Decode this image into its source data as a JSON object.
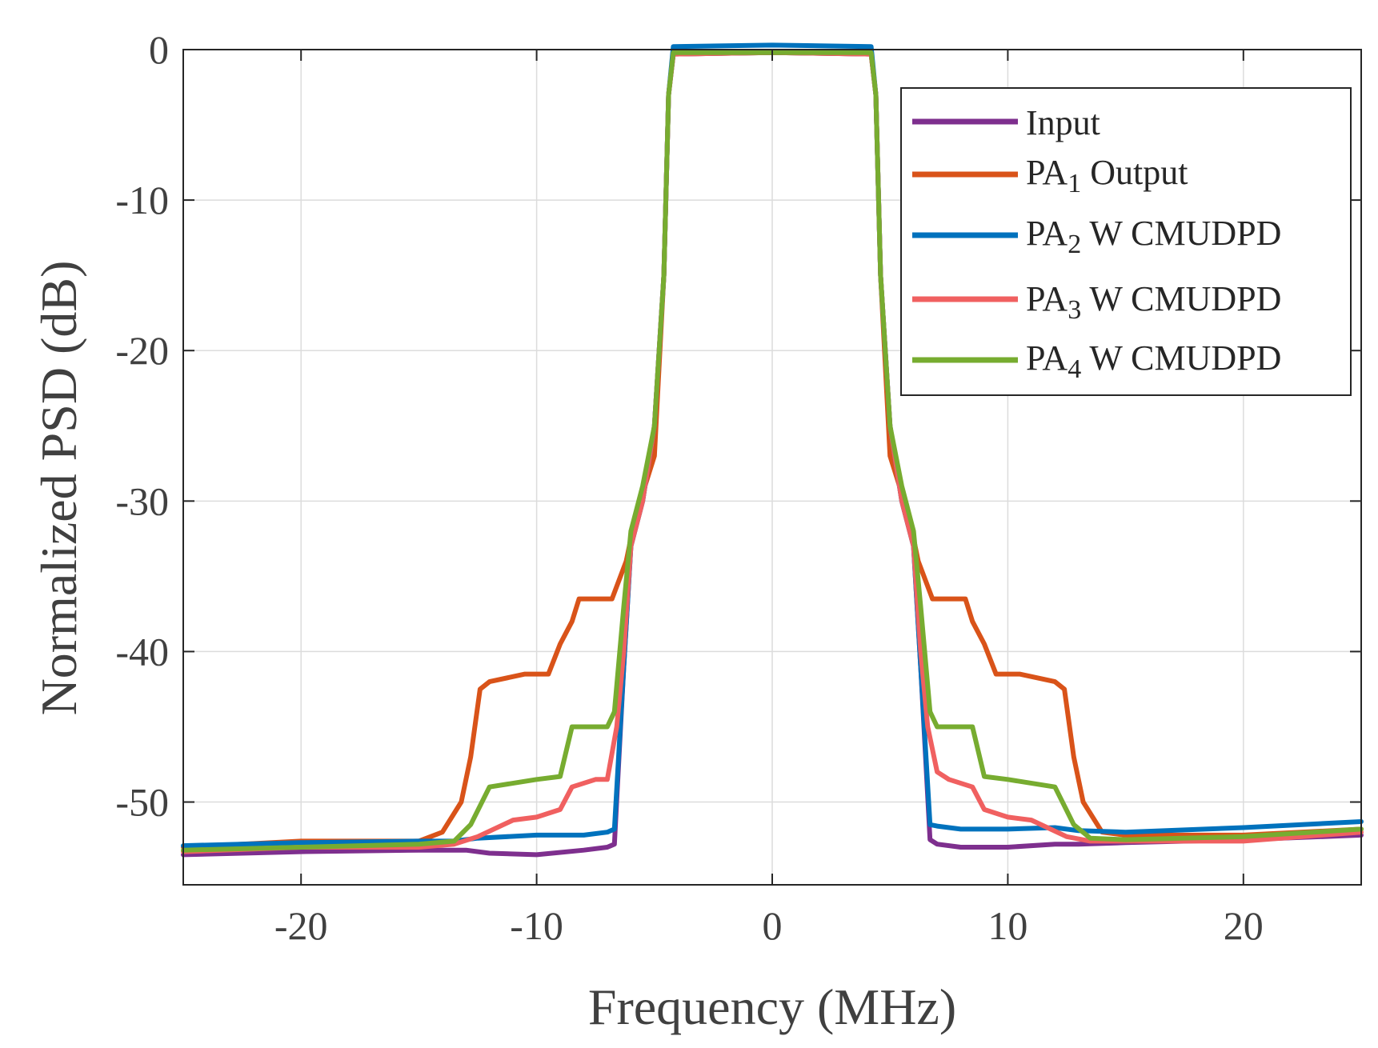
{
  "chart_data": {
    "type": "line",
    "title": "",
    "xlabel": "Frequency (MHz)",
    "ylabel": "Normalized PSD (dB)",
    "xlim": [
      -25,
      25
    ],
    "ylim": [
      -55.5,
      0
    ],
    "xticks": [
      -20,
      -10,
      0,
      10,
      20
    ],
    "xtick_labels": [
      "-20",
      "-10",
      "0",
      "10",
      "20"
    ],
    "yticks": [
      0,
      -10,
      -20,
      -30,
      -40,
      -50
    ],
    "ytick_labels": [
      "0",
      "-10",
      "-20",
      "-30",
      "-40",
      "-50"
    ],
    "grid": true,
    "legend_position": "top-right",
    "series": [
      {
        "name": "Input",
        "legend_main": "Input",
        "legend_sub": "",
        "legend_rest": "",
        "color": "#7E2F8E",
        "x": [
          -25,
          -20,
          -15,
          -13,
          -12,
          -10,
          -8,
          -7,
          -6.7,
          -6.3,
          -6,
          -5.5,
          -5,
          -4.6,
          -4.4,
          -4.2,
          0,
          4.2,
          4.4,
          4.6,
          5,
          5.5,
          6,
          6.3,
          6.7,
          7,
          8,
          10,
          12,
          13,
          15,
          20,
          25
        ],
        "y": [
          -53.5,
          -53.3,
          -53.2,
          -53.2,
          -53.4,
          -53.5,
          -53.2,
          -53,
          -52.8,
          -41,
          -33,
          -30,
          -25,
          -15,
          -3,
          -0.3,
          -0.2,
          -0.3,
          -3,
          -15,
          -25,
          -30,
          -33,
          -41,
          -52.5,
          -52.8,
          -53,
          -53,
          -52.8,
          -52.8,
          -52.7,
          -52.5,
          -52.2
        ]
      },
      {
        "name": "PA1 Output",
        "legend_main": "PA",
        "legend_sub": "1",
        "legend_rest": " Output",
        "color": "#D95319",
        "x": [
          -25,
          -20,
          -15,
          -14,
          -13.2,
          -12.8,
          -12.4,
          -12,
          -10.5,
          -9.5,
          -9,
          -8.5,
          -8.2,
          -8,
          -6.8,
          -6.2,
          -5.8,
          -5,
          -4.6,
          -4.4,
          -4.2,
          0,
          4.2,
          4.4,
          4.6,
          5,
          5.8,
          6.2,
          6.8,
          8,
          8.2,
          8.5,
          9,
          9.5,
          10.5,
          12,
          12.4,
          12.8,
          13.2,
          14,
          15,
          20,
          25
        ],
        "y": [
          -53,
          -52.6,
          -52.6,
          -52,
          -50,
          -47,
          -42.5,
          -42,
          -41.5,
          -41.5,
          -39.5,
          -38,
          -36.5,
          -36.5,
          -36.5,
          -34,
          -31,
          -27,
          -15,
          -3,
          -0.3,
          -0.2,
          -0.3,
          -3,
          -15,
          -27,
          -31,
          -34,
          -36.5,
          -36.5,
          -36.5,
          -38,
          -39.5,
          -41.5,
          -41.5,
          -42,
          -42.5,
          -47,
          -50,
          -52,
          -52.2,
          -52.2,
          -51.8
        ]
      },
      {
        "name": "PA2 W CMUDPD",
        "legend_main": "PA",
        "legend_sub": "2",
        "legend_rest": " W CMUDPD",
        "color": "#0072BD",
        "x": [
          -25,
          -20,
          -15,
          -13.5,
          -12.5,
          -10,
          -8,
          -7,
          -6.7,
          -6.3,
          -6,
          -5.5,
          -5,
          -4.6,
          -4.4,
          -4.2,
          0,
          4.2,
          4.4,
          4.6,
          5,
          5.5,
          6,
          6.3,
          6.7,
          7,
          8,
          10,
          12,
          13,
          15,
          20,
          25
        ],
        "y": [
          -52.9,
          -52.7,
          -52.6,
          -52.6,
          -52.4,
          -52.2,
          -52.2,
          -52,
          -51.8,
          -41,
          -33,
          -30,
          -25,
          -15,
          -3,
          0.2,
          0.3,
          0.2,
          -3,
          -15,
          -25,
          -30,
          -33,
          -41,
          -51.5,
          -51.6,
          -51.8,
          -51.8,
          -51.7,
          -51.9,
          -52,
          -51.7,
          -51.3
        ]
      },
      {
        "name": "PA3 W CMUDPD",
        "legend_main": "PA",
        "legend_sub": "3",
        "legend_rest": " W CMUDPD",
        "color": "#F06060",
        "x": [
          -25,
          -20,
          -15,
          -13.5,
          -12.5,
          -11,
          -10,
          -9,
          -8.5,
          -7.5,
          -7,
          -6.6,
          -6.3,
          -6,
          -5.5,
          -5,
          -4.6,
          -4.4,
          -4.2,
          0,
          4.2,
          4.4,
          4.6,
          5,
          5.5,
          6,
          6.3,
          6.6,
          7,
          7.5,
          8.5,
          9,
          10,
          11,
          12.5,
          13.5,
          15,
          20,
          25
        ],
        "y": [
          -53.3,
          -53,
          -53,
          -52.8,
          -52.3,
          -51.2,
          -51,
          -50.5,
          -49,
          -48.5,
          -48.5,
          -45,
          -40,
          -33,
          -30,
          -25,
          -15,
          -3,
          -0.3,
          -0.2,
          -0.3,
          -3,
          -15,
          -25,
          -30,
          -33,
          -40,
          -45,
          -48,
          -48.5,
          -49,
          -50.5,
          -51,
          -51.2,
          -52.3,
          -52.6,
          -52.6,
          -52.6,
          -52
        ]
      },
      {
        "name": "PA4 W CMUDPD",
        "legend_main": "PA",
        "legend_sub": "4",
        "legend_rest": " W CMUDPD",
        "color": "#77AC30",
        "x": [
          -25,
          -20,
          -15,
          -13.5,
          -12.8,
          -12,
          -10,
          -9,
          -8.5,
          -8.2,
          -7,
          -6.7,
          -6.3,
          -6,
          -5.5,
          -5,
          -4.6,
          -4.4,
          -4.2,
          0,
          4.2,
          4.4,
          4.6,
          5,
          5.5,
          6,
          6.3,
          6.7,
          7,
          8.2,
          8.5,
          9,
          10,
          12,
          12.8,
          13.5,
          15,
          20,
          25
        ],
        "y": [
          -53.2,
          -53,
          -52.8,
          -52.6,
          -51.5,
          -49,
          -48.5,
          -48.3,
          -45,
          -45,
          -45,
          -44,
          -37,
          -32,
          -29,
          -25,
          -15,
          -3,
          -0.2,
          -0.2,
          -0.2,
          -3,
          -15,
          -25,
          -29,
          -32,
          -37,
          -44,
          -45,
          -45,
          -45,
          -48.3,
          -48.5,
          -49,
          -51.5,
          -52.4,
          -52.5,
          -52.3,
          -51.8
        ]
      }
    ]
  }
}
